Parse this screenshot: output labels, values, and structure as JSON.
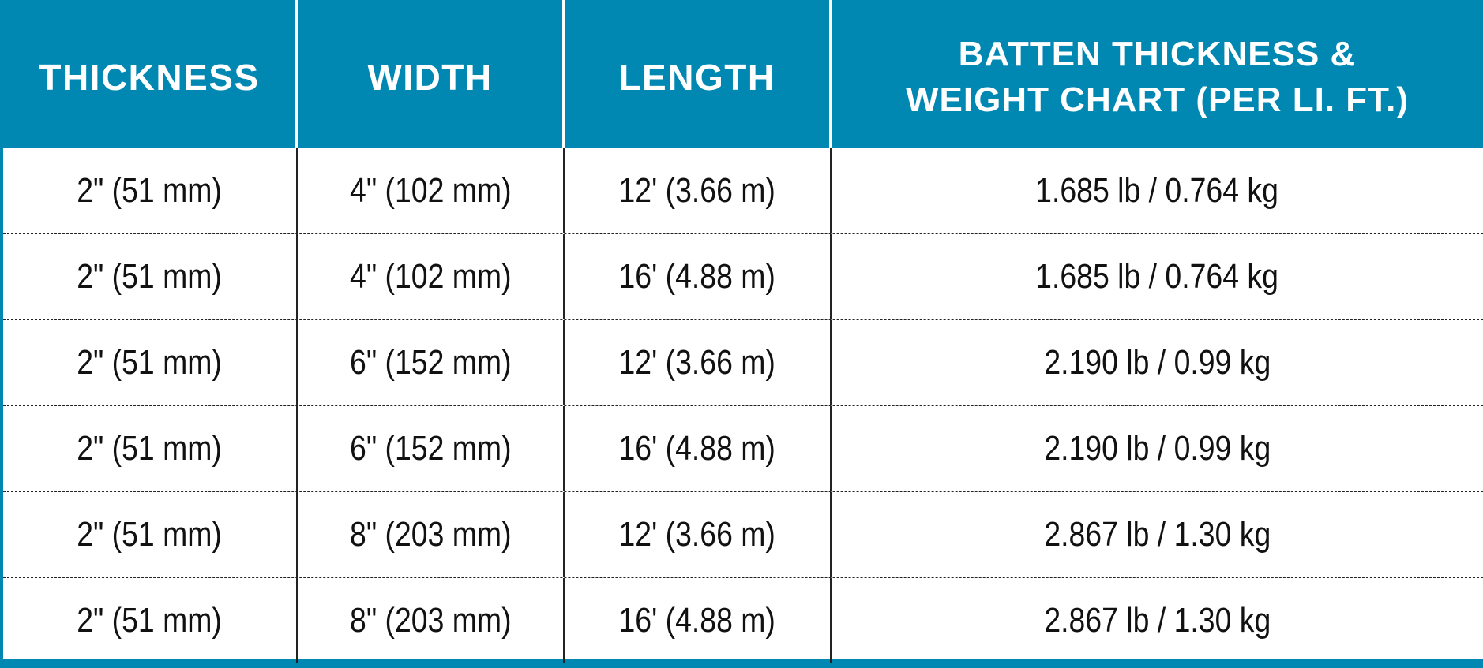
{
  "table": {
    "header": [
      [
        "THICKNESS"
      ],
      [
        "WIDTH"
      ],
      [
        "LENGTH"
      ],
      [
        "BATTEN THICKNESS &",
        "WEIGHT CHART (PER LI. FT.)"
      ]
    ],
    "rows": [
      [
        "2\" (51 mm)",
        "4\" (102 mm)",
        "12' (3.66 m)",
        "1.685 lb / 0.764 kg"
      ],
      [
        "2\" (51 mm)",
        "4\" (102 mm)",
        "16' (4.88 m)",
        "1.685 lb / 0.764 kg"
      ],
      [
        "2\" (51 mm)",
        "6\" (152 mm)",
        "12' (3.66 m)",
        "2.190 lb / 0.99 kg"
      ],
      [
        "2\" (51 mm)",
        "6\" (152 mm)",
        "16' (4.88 m)",
        "2.190 lb / 0.99 kg"
      ],
      [
        "2\" (51 mm)",
        "8\" (203 mm)",
        "12' (3.66 m)",
        "2.867 lb / 1.30 kg"
      ],
      [
        "2\" (51 mm)",
        "8\" (203 mm)",
        "16' (4.88 m)",
        "2.867 lb / 1.30 kg"
      ]
    ]
  }
}
